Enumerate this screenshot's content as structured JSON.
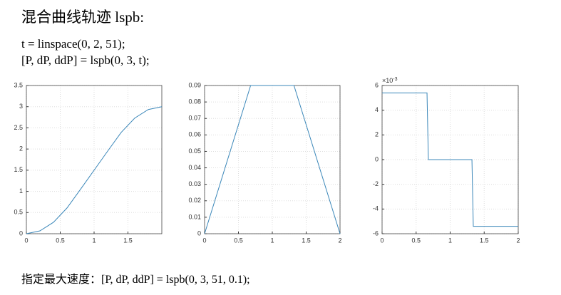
{
  "title": "混合曲线轨迹 lspb:",
  "code_lines": [
    "t = linspace(0, 2, 51);",
    "[P, dP, ddP] = lspb(0, 3, t);"
  ],
  "footer": "指定最大速度：[P, dP, ddP] = lspb(0, 3, 51, 0.1);",
  "chart_data": [
    {
      "type": "line",
      "color": "#3b87b9",
      "grid": true,
      "x": [
        0,
        0.2,
        0.4,
        0.6,
        0.8,
        1.0,
        1.2,
        1.4,
        1.6,
        1.8,
        2.0
      ],
      "values": [
        0,
        0.0675,
        0.27,
        0.6075,
        1.05,
        1.5,
        1.95,
        2.3925,
        2.73,
        2.9325,
        3
      ],
      "xlim": [
        0,
        2
      ],
      "xticks": [
        0,
        0.5,
        1,
        1.5
      ],
      "ylim": [
        0,
        3.5
      ],
      "yticks": [
        0,
        0.5,
        1,
        1.5,
        2,
        2.5,
        3,
        3.5
      ]
    },
    {
      "type": "line",
      "color": "#3b87b9",
      "grid": true,
      "x": [
        0,
        0.68,
        1.32,
        2
      ],
      "values": [
        0,
        0.09,
        0.09,
        0
      ],
      "xlim": [
        0,
        2
      ],
      "xticks": [
        0,
        0.5,
        1,
        1.5,
        2
      ],
      "ylim": [
        0,
        0.09
      ],
      "yticks": [
        0,
        0.01,
        0.02,
        0.03,
        0.04,
        0.05,
        0.06,
        0.07,
        0.08,
        0.09
      ]
    },
    {
      "type": "line",
      "color": "#3b87b9",
      "grid": true,
      "x": [
        0,
        0.66,
        0.68,
        1.32,
        1.34,
        2
      ],
      "values": [
        5.4,
        5.4,
        0,
        0,
        -5.4,
        -5.4
      ],
      "exponent_base": "×10",
      "exponent": "-3",
      "xlim": [
        0,
        2
      ],
      "xticks": [
        0,
        0.5,
        1,
        1.5,
        2
      ],
      "ylim": [
        -6,
        6
      ],
      "yticks": [
        -6,
        -4,
        -2,
        0,
        2,
        4,
        6
      ]
    }
  ]
}
